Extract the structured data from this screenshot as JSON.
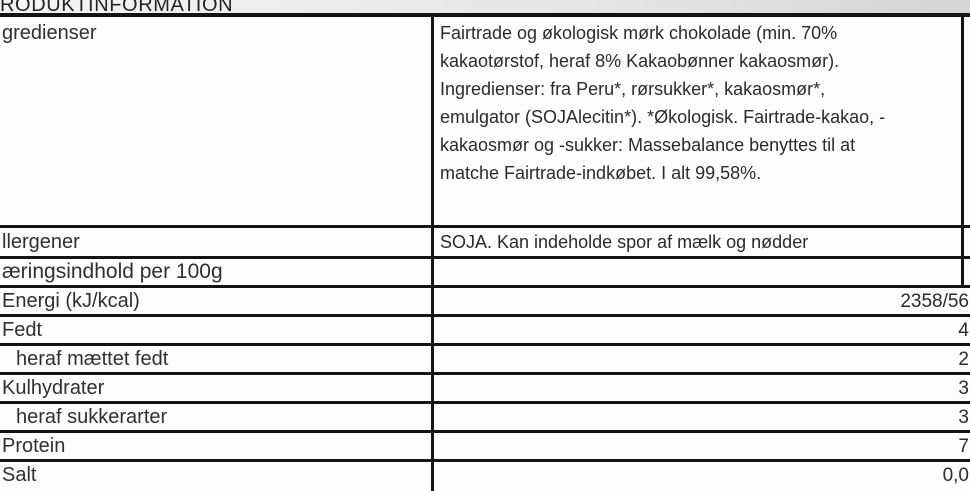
{
  "title": "RODUKTINFORMATION",
  "table": {
    "ingredients": {
      "label": "gredienser",
      "value": "Fairtrade og økologisk mørk chokolade (min. 70%\nkakaotørstof, heraf 8% Kakaobønner kakaosmør).\nIngredienser: fra Peru*, rørsukker*, kakaosmør*,\nemulgator (SOJAlecitin*). *Økologisk. Fairtrade-kakao, -\nkakaosmør og -sukker: Massebalance benyttes til at\nmatche Fairtrade-indkøbet. I alt 99,58%."
    },
    "allergens": {
      "label": "llergener",
      "value": "SOJA. Kan indeholde spor af mælk og nødder"
    },
    "nutrition_header": {
      "label": "æringsindhold per 100g",
      "value": ""
    },
    "nutrition_rows": [
      {
        "label": "Energi (kJ/kcal)",
        "value": "2358/56"
      },
      {
        "label": "Fedt",
        "value": "4"
      },
      {
        "label": "heraf mættet fedt",
        "value": "2",
        "indent": true
      },
      {
        "label": "Kulhydrater",
        "value": "3"
      },
      {
        "label": "heraf sukkerarter",
        "value": "3",
        "indent": true
      },
      {
        "label": "Protein",
        "value": "7"
      },
      {
        "label": "Salt",
        "value": "0,0"
      }
    ]
  },
  "colors": {
    "grid_border": "#141414",
    "text": "#2e2e2e",
    "title_background": "#e3e3e3",
    "background": "#fdfdfd"
  }
}
